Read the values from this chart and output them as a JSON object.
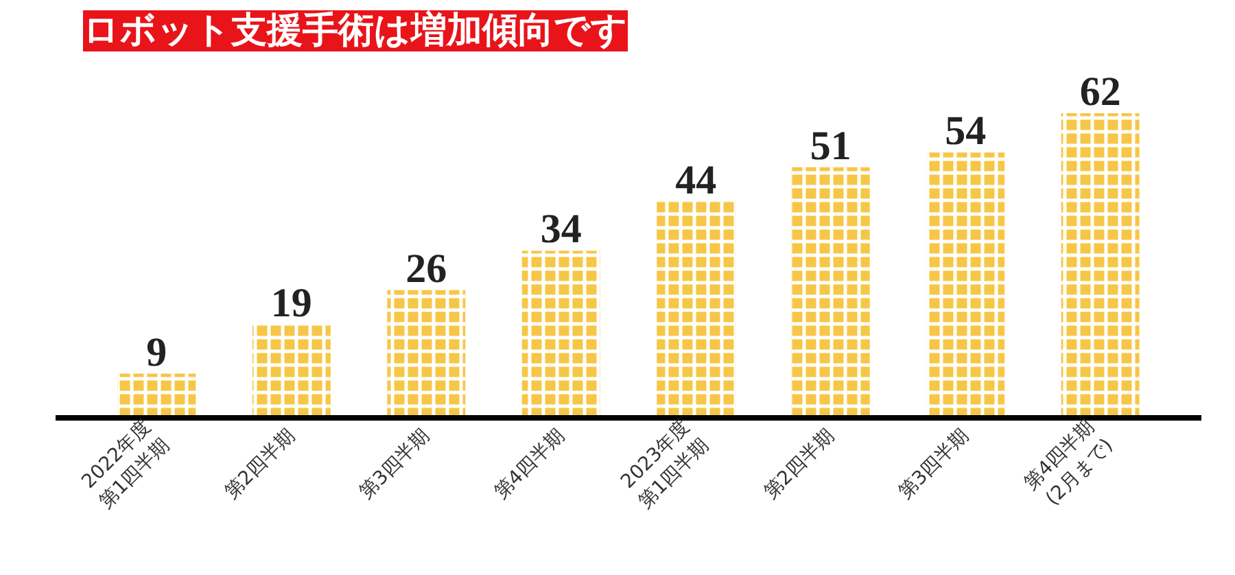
{
  "chart_data": {
    "type": "bar",
    "title": "ロボット支援手術は増加傾向です",
    "categories": [
      "2022年度\n第1四半期",
      "第2四半期",
      "第3四半期",
      "第4四半期",
      "2023年度\n第1四半期",
      "第2四半期",
      "第3四半期",
      "第4四半期\n(2月まで)"
    ],
    "values": [
      9,
      19,
      26,
      34,
      44,
      51,
      54,
      62
    ],
    "color": "#f7c646",
    "data_labels": true
  }
}
